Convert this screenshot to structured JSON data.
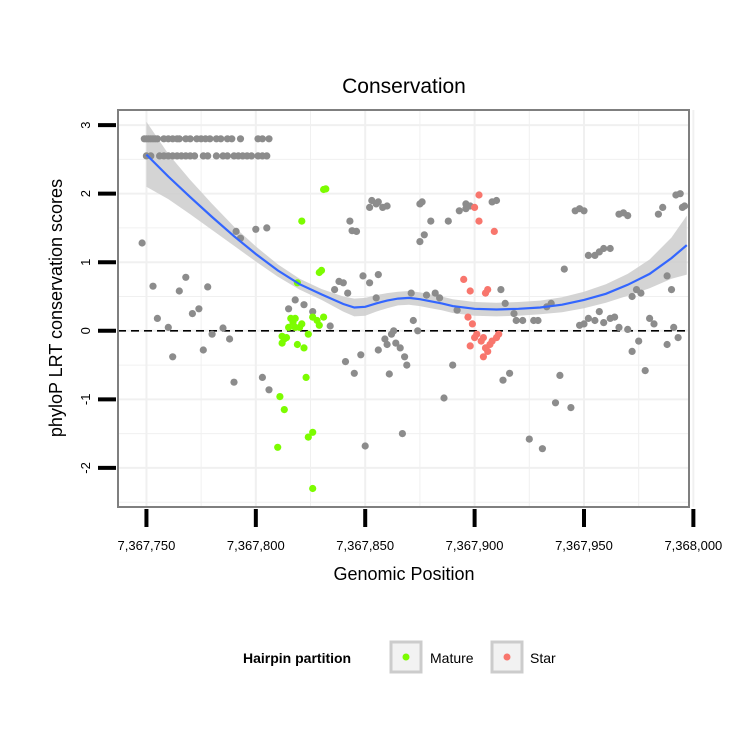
{
  "chart_data": {
    "type": "scatter",
    "title": "Conservation",
    "xlabel": "Genomic Position",
    "ylabel": "phyloP LRT conservation scores",
    "xlim": [
      7367737,
      7367998
    ],
    "ylim": [
      -2.57,
      3.22
    ],
    "x_ticks": [
      7367750,
      7367800,
      7367850,
      7367900,
      7367950,
      7368000
    ],
    "x_tick_labels": [
      "7,367,750",
      "7,367,800",
      "7,367,850",
      "7,367,900",
      "7,367,950",
      "7,368,000"
    ],
    "y_ticks": [
      -2,
      -1,
      0,
      1,
      2,
      3
    ],
    "y_tick_labels": [
      "-2",
      "-1",
      "0",
      "1",
      "2",
      "3"
    ],
    "reference_line": {
      "y": 0,
      "style": "dashed"
    },
    "legend": {
      "title": "Hairpin partition",
      "placement": "bottom",
      "entries": [
        {
          "label": "Mature",
          "color": "#7CFC00"
        },
        {
          "label": "Star",
          "color": "#F8766D"
        }
      ]
    },
    "colors": {
      "other": "#8c8c8c",
      "smooth": "#3366FF",
      "ribbon": "#cccccc",
      "grid": "#f0f0f0",
      "border": "#7f7f7f"
    },
    "series": [
      {
        "name": "Other",
        "color": "#8c8c8c",
        "points": [
          [
            7367749,
            2.8
          ],
          [
            7367750,
            2.8
          ],
          [
            7367751,
            2.8
          ],
          [
            7367752,
            2.8
          ],
          [
            7367753,
            2.8
          ],
          [
            7367754,
            2.8
          ],
          [
            7367755,
            2.8
          ],
          [
            7367758,
            2.8
          ],
          [
            7367760,
            2.8
          ],
          [
            7367762,
            2.8
          ],
          [
            7367764,
            2.8
          ],
          [
            7367765,
            2.8
          ],
          [
            7367768,
            2.8
          ],
          [
            7367770,
            2.8
          ],
          [
            7367773,
            2.8
          ],
          [
            7367775,
            2.8
          ],
          [
            7367777,
            2.8
          ],
          [
            7367779,
            2.8
          ],
          [
            7367782,
            2.8
          ],
          [
            7367784,
            2.8
          ],
          [
            7367787,
            2.8
          ],
          [
            7367789,
            2.8
          ],
          [
            7367793,
            2.8
          ],
          [
            7367801,
            2.8
          ],
          [
            7367803,
            2.8
          ],
          [
            7367806,
            2.8
          ],
          [
            7367750,
            2.55
          ],
          [
            7367752,
            2.55
          ],
          [
            7367756,
            2.55
          ],
          [
            7367758,
            2.55
          ],
          [
            7367760,
            2.55
          ],
          [
            7367762,
            2.55
          ],
          [
            7367764,
            2.55
          ],
          [
            7367766,
            2.55
          ],
          [
            7367768,
            2.55
          ],
          [
            7367770,
            2.55
          ],
          [
            7367772,
            2.55
          ],
          [
            7367776,
            2.55
          ],
          [
            7367778,
            2.55
          ],
          [
            7367782,
            2.55
          ],
          [
            7367785,
            2.55
          ],
          [
            7367787,
            2.55
          ],
          [
            7367790,
            2.55
          ],
          [
            7367792,
            2.55
          ],
          [
            7367794,
            2.55
          ],
          [
            7367796,
            2.55
          ],
          [
            7367798,
            2.55
          ],
          [
            7367801,
            2.55
          ],
          [
            7367803,
            2.55
          ],
          [
            7367805,
            2.55
          ],
          [
            7367748,
            1.28
          ],
          [
            7367753,
            0.65
          ],
          [
            7367755,
            0.18
          ],
          [
            7367760,
            0.05
          ],
          [
            7367762,
            -0.38
          ],
          [
            7367765,
            0.58
          ],
          [
            7367768,
            0.78
          ],
          [
            7367771,
            0.25
          ],
          [
            7367774,
            0.32
          ],
          [
            7367776,
            -0.28
          ],
          [
            7367778,
            0.64
          ],
          [
            7367780,
            -0.05
          ],
          [
            7367785,
            0.04
          ],
          [
            7367788,
            -0.12
          ],
          [
            7367790,
            -0.75
          ],
          [
            7367791,
            1.45
          ],
          [
            7367793,
            1.35
          ],
          [
            7367800,
            1.48
          ],
          [
            7367803,
            -0.68
          ],
          [
            7367805,
            1.5
          ],
          [
            7367806,
            -0.86
          ],
          [
            7367815,
            0.32
          ],
          [
            7367818,
            0.45
          ],
          [
            7367822,
            0.38
          ],
          [
            7367826,
            0.28
          ],
          [
            7367834,
            0.07
          ],
          [
            7367836,
            0.6
          ],
          [
            7367838,
            0.72
          ],
          [
            7367840,
            0.7
          ],
          [
            7367842,
            0.55
          ],
          [
            7367844,
            1.46
          ],
          [
            7367846,
            1.45
          ],
          [
            7367843,
            1.6
          ],
          [
            7367849,
            0.8
          ],
          [
            7367852,
            0.7
          ],
          [
            7367855,
            0.48
          ],
          [
            7367856,
            0.82
          ],
          [
            7367841,
            -0.45
          ],
          [
            7367845,
            -0.62
          ],
          [
            7367848,
            -0.35
          ],
          [
            7367852,
            1.8
          ],
          [
            7367853,
            1.9
          ],
          [
            7367855,
            1.85
          ],
          [
            7367856,
            1.88
          ],
          [
            7367858,
            1.8
          ],
          [
            7367860,
            1.82
          ],
          [
            7367850,
            -1.68
          ],
          [
            7367856,
            -0.28
          ],
          [
            7367859,
            -0.12
          ],
          [
            7367860,
            -0.2
          ],
          [
            7367861,
            -0.63
          ],
          [
            7367862,
            -0.05
          ],
          [
            7367863,
            0.0
          ],
          [
            7367864,
            -0.18
          ],
          [
            7367866,
            -0.25
          ],
          [
            7367867,
            -1.5
          ],
          [
            7367868,
            -0.38
          ],
          [
            7367869,
            -0.5
          ],
          [
            7367871,
            0.55
          ],
          [
            7367872,
            0.15
          ],
          [
            7367874,
            0.0
          ],
          [
            7367875,
            1.85
          ],
          [
            7367876,
            1.88
          ],
          [
            7367877,
            1.4
          ],
          [
            7367875,
            1.3
          ],
          [
            7367880,
            1.6
          ],
          [
            7367878,
            0.52
          ],
          [
            7367882,
            0.55
          ],
          [
            7367884,
            0.48
          ],
          [
            7367886,
            -0.98
          ],
          [
            7367888,
            1.6
          ],
          [
            7367890,
            -0.5
          ],
          [
            7367892,
            0.3
          ],
          [
            7367893,
            1.75
          ],
          [
            7367896,
            1.78
          ],
          [
            7367898,
            1.82
          ],
          [
            7367896,
            1.85
          ],
          [
            7367908,
            1.88
          ],
          [
            7367910,
            1.9
          ],
          [
            7367912,
            0.6
          ],
          [
            7367914,
            0.4
          ],
          [
            7367913,
            -0.72
          ],
          [
            7367916,
            -0.62
          ],
          [
            7367918,
            0.25
          ],
          [
            7367919,
            0.15
          ],
          [
            7367922,
            0.15
          ],
          [
            7367925,
            -1.58
          ],
          [
            7367927,
            0.15
          ],
          [
            7367929,
            0.15
          ],
          [
            7367931,
            -1.72
          ],
          [
            7367933,
            0.35
          ],
          [
            7367935,
            0.4
          ],
          [
            7367937,
            -1.05
          ],
          [
            7367939,
            -0.65
          ],
          [
            7367941,
            0.9
          ],
          [
            7367944,
            -1.12
          ],
          [
            7367946,
            1.75
          ],
          [
            7367948,
            1.78
          ],
          [
            7367950,
            1.75
          ],
          [
            7367952,
            1.1
          ],
          [
            7367955,
            1.1
          ],
          [
            7367957,
            1.15
          ],
          [
            7367959,
            1.2
          ],
          [
            7367962,
            1.2
          ],
          [
            7367948,
            0.08
          ],
          [
            7367950,
            0.1
          ],
          [
            7367952,
            0.18
          ],
          [
            7367955,
            0.15
          ],
          [
            7367957,
            0.28
          ],
          [
            7367959,
            0.12
          ],
          [
            7367962,
            0.18
          ],
          [
            7367964,
            0.2
          ],
          [
            7367966,
            1.7
          ],
          [
            7367968,
            1.72
          ],
          [
            7367970,
            1.68
          ],
          [
            7367972,
            0.5
          ],
          [
            7367974,
            0.6
          ],
          [
            7367976,
            0.55
          ],
          [
            7367978,
            -0.58
          ],
          [
            7367980,
            0.18
          ],
          [
            7367982,
            0.1
          ],
          [
            7367984,
            1.7
          ],
          [
            7367986,
            1.8
          ],
          [
            7367988,
            0.8
          ],
          [
            7367990,
            0.6
          ],
          [
            7367992,
            1.98
          ],
          [
            7367994,
            2.0
          ],
          [
            7367995,
            1.8
          ],
          [
            7367996,
            1.82
          ],
          [
            7367993,
            -0.1
          ],
          [
            7367991,
            0.05
          ],
          [
            7367972,
            -0.3
          ],
          [
            7367970,
            0.02
          ],
          [
            7367966,
            0.05
          ],
          [
            7367975,
            -0.15
          ],
          [
            7367988,
            -0.2
          ]
        ]
      },
      {
        "name": "Mature",
        "color": "#7CFC00",
        "points": [
          [
            7367821,
            1.6
          ],
          [
            7367829,
            0.85
          ],
          [
            7367830,
            0.88
          ],
          [
            7367831,
            2.06
          ],
          [
            7367832,
            2.07
          ],
          [
            7367819,
            0.7
          ],
          [
            7367812,
            -0.08
          ],
          [
            7367813,
            -0.12
          ],
          [
            7367814,
            -0.1
          ],
          [
            7367815,
            0.05
          ],
          [
            7367816,
            0.18
          ],
          [
            7367817,
            0.12
          ],
          [
            7367818,
            0.18
          ],
          [
            7367819,
            -0.2
          ],
          [
            7367820,
            0.05
          ],
          [
            7367821,
            0.1
          ],
          [
            7367822,
            -0.25
          ],
          [
            7367812,
            -0.18
          ],
          [
            7367818,
            0.05
          ],
          [
            7367824,
            -0.05
          ],
          [
            7367826,
            0.2
          ],
          [
            7367828,
            0.15
          ],
          [
            7367829,
            0.08
          ],
          [
            7367831,
            0.2
          ],
          [
            7367823,
            -0.68
          ],
          [
            7367811,
            -0.96
          ],
          [
            7367813,
            -1.15
          ],
          [
            7367810,
            -1.7
          ],
          [
            7367826,
            -1.48
          ],
          [
            7367824,
            -1.55
          ],
          [
            7367826,
            -2.3
          ]
        ]
      },
      {
        "name": "Star",
        "color": "#F8766D",
        "points": [
          [
            7367902,
            1.98
          ],
          [
            7367900,
            1.8
          ],
          [
            7367902,
            1.6
          ],
          [
            7367909,
            1.45
          ],
          [
            7367895,
            0.75
          ],
          [
            7367898,
            0.58
          ],
          [
            7367905,
            0.55
          ],
          [
            7367906,
            0.6
          ],
          [
            7367897,
            0.2
          ],
          [
            7367899,
            0.1
          ],
          [
            7367898,
            -0.22
          ],
          [
            7367900,
            -0.1
          ],
          [
            7367901,
            -0.05
          ],
          [
            7367903,
            -0.15
          ],
          [
            7367904,
            -0.1
          ],
          [
            7367905,
            -0.25
          ],
          [
            7367904,
            -0.38
          ],
          [
            7367906,
            -0.3
          ],
          [
            7367907,
            -0.2
          ],
          [
            7367908,
            -0.15
          ],
          [
            7367910,
            -0.1
          ],
          [
            7367911,
            -0.05
          ]
        ]
      }
    ],
    "smooth_curve": {
      "name": "loess fit",
      "x": [
        7367750,
        7367760,
        7367770,
        7367780,
        7367790,
        7367800,
        7367810,
        7367820,
        7367830,
        7367840,
        7367845,
        7367850,
        7367855,
        7367860,
        7367865,
        7367870,
        7367875,
        7367880,
        7367885,
        7367890,
        7367900,
        7367910,
        7367920,
        7367930,
        7367940,
        7367950,
        7367960,
        7367970,
        7367980,
        7367990,
        7367997
      ],
      "y": [
        2.57,
        2.25,
        1.95,
        1.66,
        1.38,
        1.12,
        0.88,
        0.68,
        0.53,
        0.39,
        0.34,
        0.35,
        0.4,
        0.44,
        0.47,
        0.48,
        0.46,
        0.43,
        0.4,
        0.36,
        0.32,
        0.31,
        0.32,
        0.34,
        0.38,
        0.45,
        0.54,
        0.67,
        0.83,
        1.06,
        1.25
      ],
      "ci_lower": [
        2.1,
        1.92,
        1.7,
        1.47,
        1.24,
        1.01,
        0.79,
        0.6,
        0.45,
        0.28,
        0.21,
        0.22,
        0.28,
        0.33,
        0.37,
        0.38,
        0.36,
        0.33,
        0.3,
        0.26,
        0.22,
        0.21,
        0.22,
        0.24,
        0.27,
        0.33,
        0.41,
        0.51,
        0.62,
        0.76,
        0.82
      ],
      "ci_upper": [
        3.05,
        2.58,
        2.2,
        1.85,
        1.52,
        1.23,
        0.97,
        0.76,
        0.61,
        0.5,
        0.47,
        0.48,
        0.52,
        0.55,
        0.57,
        0.58,
        0.56,
        0.53,
        0.5,
        0.46,
        0.42,
        0.41,
        0.42,
        0.44,
        0.49,
        0.57,
        0.68,
        0.83,
        1.04,
        1.36,
        1.68
      ]
    }
  }
}
